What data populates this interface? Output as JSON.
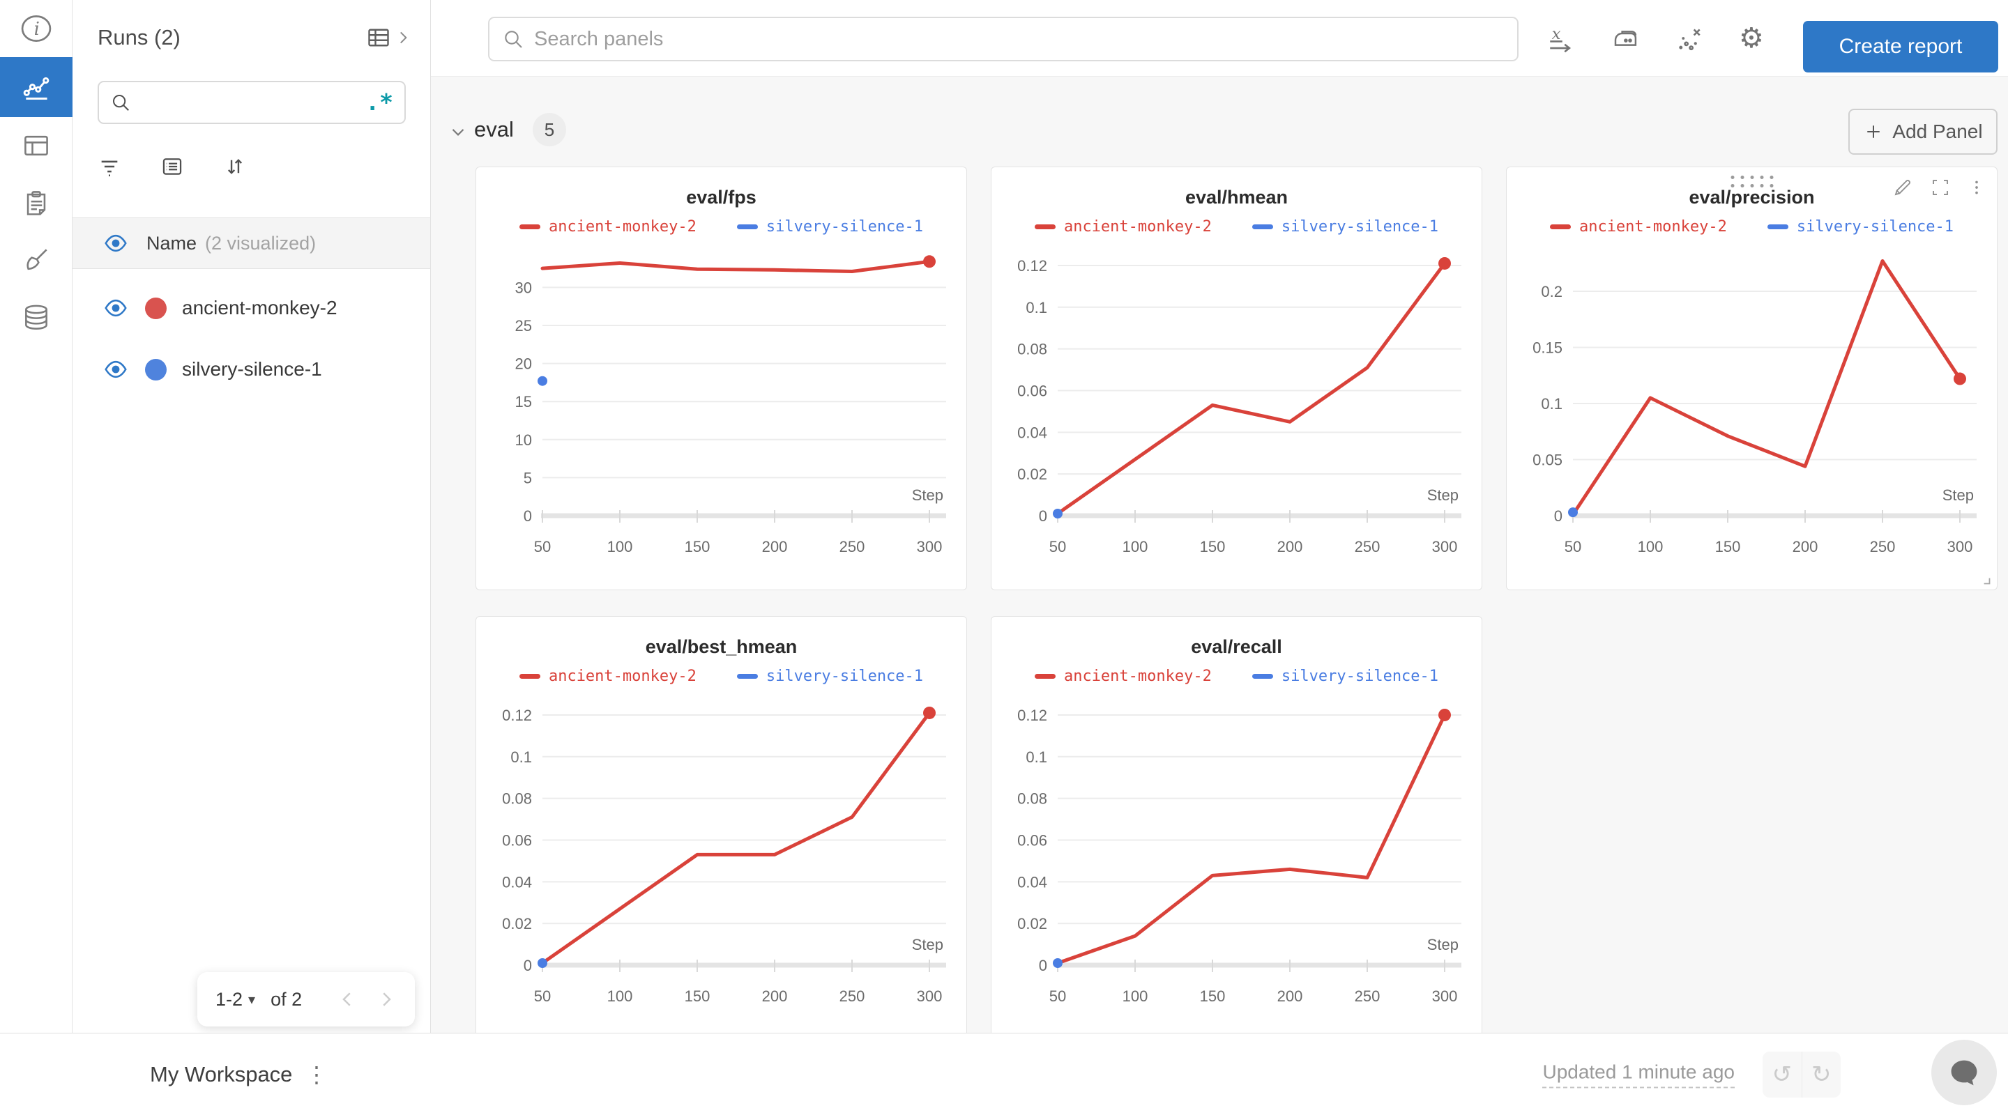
{
  "colors": {
    "accent_blue": "#2e78c7",
    "regex_teal": "#0d9aa8",
    "run_red": "#d9534f",
    "run_blue": "#4f83dd",
    "series_red": "#d9423a",
    "series_blue": "#4a7de2"
  },
  "nav_rail": {
    "items": [
      {
        "icon": "info-icon",
        "selected": false
      },
      {
        "icon": "line-chart-icon",
        "selected": true
      },
      {
        "icon": "table-icon",
        "selected": false
      },
      {
        "icon": "clipboard-icon",
        "selected": false
      },
      {
        "icon": "brush-icon",
        "selected": false
      },
      {
        "icon": "database-icon",
        "selected": false
      }
    ]
  },
  "sidebar": {
    "title": "Runs (2)",
    "header_icons": [
      "runs-table-icon",
      "chevron-right-icon"
    ],
    "search": {
      "value": "",
      "placeholder": "",
      "regex_label": ".*"
    },
    "toolbar_icons": [
      "filter-icon",
      "list-icon",
      "sort-icon"
    ],
    "name_row": {
      "label": "Name",
      "annotation": "(2 visualized)"
    },
    "runs": [
      {
        "name": "ancient-monkey-2",
        "color": "#d9534f",
        "visible": true
      },
      {
        "name": "silvery-silence-1",
        "color": "#4f83dd",
        "visible": true
      }
    ],
    "pagination": {
      "range_label": "1-2",
      "of_label": "of 2"
    }
  },
  "topbar": {
    "search_placeholder": "Search panels",
    "icons": [
      "x-axis-icon",
      "smoothing-iron-icon",
      "outlier-scatter-icon",
      "settings-gear-icon"
    ],
    "create_report_label": "Create report"
  },
  "section": {
    "title": "eval",
    "panel_count": "5",
    "add_panel_label": "Add Panel"
  },
  "footer": {
    "workspace_label": "My Workspace",
    "updated_label": "Updated 1 minute ago"
  },
  "chart_data": [
    {
      "type": "line",
      "title": "eval/fps",
      "xlabel": "Step",
      "x_ticks": [
        50,
        100,
        150,
        200,
        250,
        300
      ],
      "y_ticks": [
        0,
        5,
        10,
        15,
        20,
        25,
        30
      ],
      "xlim": [
        50,
        300
      ],
      "ylim": [
        0,
        34.8
      ],
      "grid": true,
      "legend_position": "top",
      "series": [
        {
          "name": "ancient-monkey-2",
          "color": "#d9423a",
          "x": [
            50,
            100,
            150,
            200,
            250,
            300
          ],
          "y": [
            32.5,
            33.2,
            32.4,
            32.3,
            32.1,
            33.4
          ]
        },
        {
          "name": "silvery-silence-1",
          "color": "#4a7de2",
          "x": [
            50
          ],
          "y": [
            17.7
          ]
        }
      ]
    },
    {
      "type": "line",
      "title": "eval/hmean",
      "xlabel": "Step",
      "x_ticks": [
        50,
        100,
        150,
        200,
        250,
        300
      ],
      "y_ticks": [
        0,
        0.02,
        0.04,
        0.06,
        0.08,
        0.1,
        0.12
      ],
      "xlim": [
        50,
        300
      ],
      "ylim": [
        0,
        0.127
      ],
      "grid": true,
      "legend_position": "top",
      "series": [
        {
          "name": "ancient-monkey-2",
          "color": "#d9423a",
          "x": [
            50,
            100,
            150,
            200,
            250,
            300
          ],
          "y": [
            0.001,
            0.027,
            0.053,
            0.045,
            0.071,
            0.121
          ]
        },
        {
          "name": "silvery-silence-1",
          "color": "#4a7de2",
          "x": [
            50
          ],
          "y": [
            0.001
          ]
        }
      ]
    },
    {
      "type": "line",
      "title": "eval/precision",
      "xlabel": "Step",
      "x_ticks": [
        50,
        100,
        150,
        200,
        250,
        300
      ],
      "y_ticks": [
        0,
        0.05,
        0.1,
        0.15,
        0.2
      ],
      "xlim": [
        50,
        300
      ],
      "ylim": [
        0,
        0.236
      ],
      "grid": true,
      "legend_position": "top",
      "series": [
        {
          "name": "ancient-monkey-2",
          "color": "#d9423a",
          "x": [
            50,
            100,
            150,
            200,
            250,
            300
          ],
          "y": [
            0.001,
            0.105,
            0.071,
            0.044,
            0.227,
            0.122
          ]
        },
        {
          "name": "silvery-silence-1",
          "color": "#4a7de2",
          "x": [
            50
          ],
          "y": [
            0.003
          ]
        }
      ]
    },
    {
      "type": "line",
      "title": "eval/best_hmean",
      "xlabel": "Step",
      "x_ticks": [
        50,
        100,
        150,
        200,
        250,
        300
      ],
      "y_ticks": [
        0,
        0.02,
        0.04,
        0.06,
        0.08,
        0.1,
        0.12
      ],
      "xlim": [
        50,
        300
      ],
      "ylim": [
        0,
        0.127
      ],
      "grid": true,
      "legend_position": "top",
      "series": [
        {
          "name": "ancient-monkey-2",
          "color": "#d9423a",
          "x": [
            50,
            100,
            150,
            200,
            250,
            300
          ],
          "y": [
            0.001,
            0.027,
            0.053,
            0.053,
            0.071,
            0.121
          ]
        },
        {
          "name": "silvery-silence-1",
          "color": "#4a7de2",
          "x": [
            50
          ],
          "y": [
            0.001
          ]
        }
      ]
    },
    {
      "type": "line",
      "title": "eval/recall",
      "xlabel": "Step",
      "x_ticks": [
        50,
        100,
        150,
        200,
        250,
        300
      ],
      "y_ticks": [
        0,
        0.02,
        0.04,
        0.06,
        0.08,
        0.1,
        0.12
      ],
      "xlim": [
        50,
        300
      ],
      "ylim": [
        0,
        0.127
      ],
      "grid": true,
      "legend_position": "top",
      "series": [
        {
          "name": "ancient-monkey-2",
          "color": "#d9423a",
          "x": [
            50,
            100,
            150,
            200,
            250,
            300
          ],
          "y": [
            0.001,
            0.014,
            0.043,
            0.046,
            0.042,
            0.12
          ]
        },
        {
          "name": "silvery-silence-1",
          "color": "#4a7de2",
          "x": [
            50
          ],
          "y": [
            0.001
          ]
        }
      ]
    }
  ]
}
